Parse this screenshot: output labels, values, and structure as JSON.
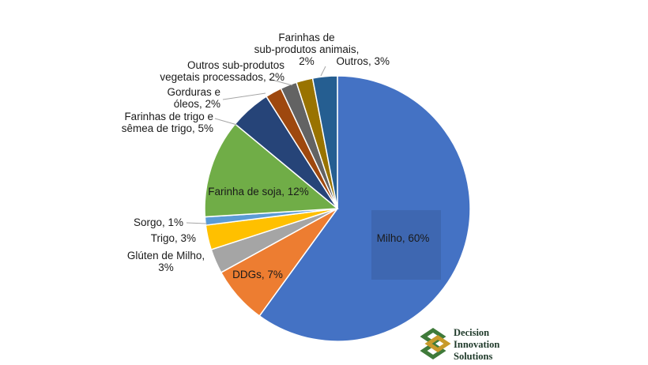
{
  "chart_data": {
    "type": "pie",
    "title": "",
    "slices": [
      {
        "name": "Milho",
        "value": 60,
        "label": "Milho, 60%",
        "color": "#4472c4"
      },
      {
        "name": "DDGs",
        "value": 7,
        "label": "DDGs, 7%",
        "color": "#ed7d31"
      },
      {
        "name": "Glúten de Milho",
        "value": 3,
        "label": [
          "Glúten de Milho,",
          "3%"
        ],
        "color": "#a5a5a5"
      },
      {
        "name": "Trigo",
        "value": 3,
        "label": "Trigo, 3%",
        "color": "#ffc000"
      },
      {
        "name": "Sorgo",
        "value": 1,
        "label": "Sorgo, 1%",
        "color": "#5b9bd5"
      },
      {
        "name": "Farinha de soja",
        "value": 12,
        "label": "Farinha de soja, 12%",
        "color": "#70ad47"
      },
      {
        "name": "Farinhas de trigo e sêmea de trigo",
        "value": 5,
        "label": [
          "Farinhas de trigo e",
          "sêmea de trigo, 5%"
        ],
        "color": "#264478"
      },
      {
        "name": "Gorduras e óleos",
        "value": 2,
        "label": [
          "Gorduras e",
          "óleos, 2%"
        ],
        "color": "#9e480e"
      },
      {
        "name": "Outros sub-produtos vegetais processados",
        "value": 2,
        "label": [
          "Outros sub-produtos",
          "vegetais processados, 2%"
        ],
        "color": "#636363"
      },
      {
        "name": "Farinhas de sub-produtos animais",
        "value": 2,
        "label": [
          "Farinhas de",
          "sub-produtos animais,",
          "2%"
        ],
        "color": "#997300"
      },
      {
        "name": "Outros",
        "value": 3,
        "label": "Outros, 3%",
        "color": "#255e91"
      }
    ]
  },
  "logo": {
    "line1": "Decision",
    "line2": "Innovation",
    "line3": "Solutions",
    "color": "#3f7a3a",
    "accent": "#c89a2a"
  }
}
